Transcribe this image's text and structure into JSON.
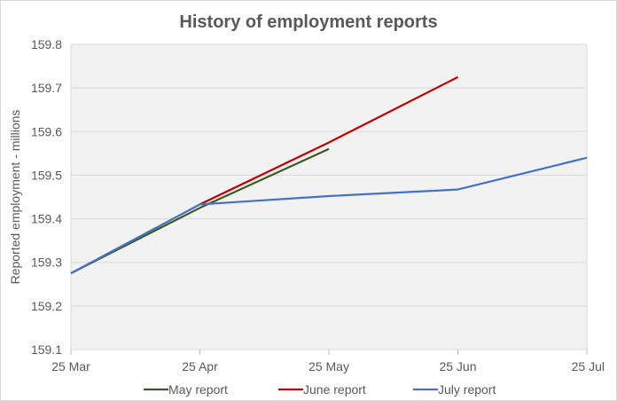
{
  "chart_data": {
    "type": "line",
    "title": "History of employment reports",
    "xlabel": "",
    "ylabel": "Reported employment - millions",
    "categories": [
      "25 Mar",
      "25 Apr",
      "25 May",
      "25 Jun",
      "25 Jul"
    ],
    "ylim": [
      159.1,
      159.8
    ],
    "yticks": [
      "159.1",
      "159.2",
      "159.3",
      "159.4",
      "159.5",
      "159.6",
      "159.7",
      "159.8"
    ],
    "grid": true,
    "legend_position": "bottom",
    "series": [
      {
        "name": "May report",
        "color": "#3b5a23",
        "values": [
          159.275,
          159.425,
          159.56,
          null,
          null
        ]
      },
      {
        "name": "June report",
        "color": "#c00000",
        "values": [
          null,
          159.433,
          159.575,
          159.725,
          null
        ]
      },
      {
        "name": "July report",
        "color": "#4472c4",
        "values": [
          159.275,
          159.433,
          159.452,
          159.467,
          159.54
        ]
      }
    ]
  }
}
